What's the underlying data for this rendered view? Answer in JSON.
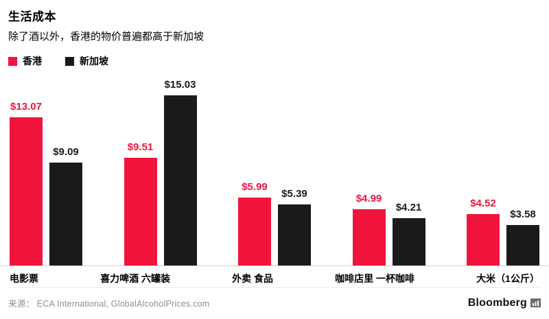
{
  "header": {
    "title": "生活成本",
    "subtitle": "除了酒以外，香港的物价普遍都高于新加坡"
  },
  "legend": [
    {
      "label": "香港",
      "color": "#f0143c"
    },
    {
      "label": "新加坡",
      "color": "#1a1a1a"
    }
  ],
  "chart_data": {
    "type": "bar",
    "title": "生活成本",
    "subtitle": "除了酒以外，香港的物价普遍都高于新加坡",
    "categories": [
      "电影票",
      "喜力啤酒 六罐装",
      "外卖 食品",
      "咖啡店里 一杯咖啡",
      "大米（1公斤）"
    ],
    "series": [
      {
        "name": "香港",
        "color": "#f0143c",
        "values": [
          13.07,
          9.51,
          5.99,
          4.99,
          4.52
        ]
      },
      {
        "name": "新加坡",
        "color": "#1a1a1a",
        "values": [
          9.09,
          15.03,
          5.39,
          4.21,
          3.58
        ]
      }
    ],
    "value_labels": {
      "hk": [
        "$13.07",
        "$9.51",
        "$5.99",
        "$4.99",
        "$4.52"
      ],
      "sg": [
        "$9.09",
        "$15.03",
        "$5.39",
        "$4.21",
        "$3.58"
      ]
    },
    "ylim": [
      0,
      15.03
    ],
    "grid": false,
    "legend_position": "top-left"
  },
  "footer": {
    "source": "来源：  ECA International, GlobalAlcoholPrices.com",
    "brand": "Bloomberg"
  }
}
